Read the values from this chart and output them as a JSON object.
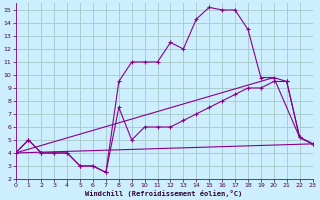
{
  "xlabel": "Windchill (Refroidissement éolien,°C)",
  "background_color": "#cceeff",
  "grid_color": "#aacccc",
  "line_color": "#880088",
  "xlim": [
    0,
    23
  ],
  "ylim": [
    2,
    15.5
  ],
  "xticks": [
    0,
    1,
    2,
    3,
    4,
    5,
    6,
    7,
    8,
    9,
    10,
    11,
    12,
    13,
    14,
    15,
    16,
    17,
    18,
    19,
    20,
    21,
    22,
    23
  ],
  "yticks": [
    2,
    3,
    4,
    5,
    6,
    7,
    8,
    9,
    10,
    11,
    12,
    13,
    14,
    15
  ],
  "line1_x": [
    0,
    1,
    2,
    3,
    4,
    5,
    6,
    7,
    8,
    9,
    10,
    11,
    12,
    13,
    14,
    15,
    16,
    17,
    18,
    19,
    20,
    21,
    22,
    23
  ],
  "line1_y": [
    4,
    5,
    4,
    4,
    4,
    3,
    3,
    2.5,
    7.5,
    5,
    6,
    6,
    6,
    6.5,
    7,
    7.5,
    8,
    8.5,
    9,
    9,
    9.5,
    9.5,
    5.2,
    4.7
  ],
  "line2_x": [
    0,
    1,
    2,
    3,
    4,
    5,
    6,
    7,
    8,
    9,
    10,
    11,
    12,
    13,
    14,
    15,
    16,
    17,
    18,
    19,
    20,
    21,
    22,
    23
  ],
  "line2_y": [
    4,
    5,
    4,
    4,
    4,
    3,
    3,
    2.5,
    9.5,
    11,
    11,
    11,
    12.5,
    12,
    14.3,
    15.2,
    15,
    15,
    13.5,
    9.8,
    9.8,
    9.5,
    5.2,
    4.7
  ],
  "line3_x": [
    0,
    20,
    22,
    23
  ],
  "line3_y": [
    4,
    9.8,
    5.2,
    4.7
  ],
  "line4_x": [
    0,
    23
  ],
  "line4_y": [
    4,
    4.7
  ]
}
